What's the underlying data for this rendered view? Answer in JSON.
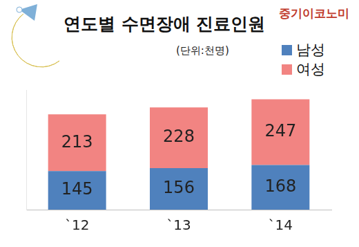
{
  "chart_data": {
    "type": "bar",
    "title": "연도별 수면장애 진료인원",
    "subtitle": "(단위:천명)",
    "annotations": [
      "중기이코노미"
    ],
    "categories": [
      "`12",
      "`13",
      "`14"
    ],
    "series": [
      {
        "name": "남성",
        "color": "#4f81bd",
        "values": [
          145,
          156,
          168
        ]
      },
      {
        "name": "여성",
        "color": "#f28482",
        "values": [
          213,
          228,
          247
        ]
      }
    ],
    "stacked": true,
    "data_labels": true,
    "legend": "top-right",
    "grid": false,
    "tick_labels": "x",
    "ylim": [
      0,
      450
    ],
    "yticks": []
  }
}
